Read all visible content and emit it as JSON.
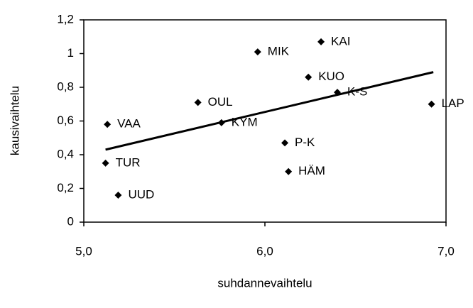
{
  "chart_data": {
    "type": "scatter",
    "x_label": "suhdannevaihtelu",
    "y_label": "kausivaihtelu",
    "series": [
      {
        "color": "#000000",
        "labels": [
          "VAA",
          "TUR",
          "UUD",
          "OUL",
          "KYM",
          "MIK",
          "KAI",
          "KUO",
          "K-S",
          "LAP",
          "P-K",
          "HÄM"
        ],
        "x": [
          5.13,
          5.12,
          5.19,
          5.63,
          5.76,
          5.96,
          6.31,
          6.24,
          6.4,
          6.92,
          6.11,
          6.13
        ],
        "values": [
          0.58,
          0.35,
          0.16,
          0.71,
          0.59,
          1.01,
          1.07,
          0.86,
          0.77,
          0.7,
          0.47,
          0.3
        ]
      }
    ],
    "trendline": {
      "color": "#000000",
      "x": [
        5.12,
        6.93
      ],
      "values": [
        0.43,
        0.89
      ]
    },
    "xlim": [
      5.0,
      7.0
    ],
    "xticks": [
      {
        "value": 5.0,
        "label": "5,0"
      },
      {
        "value": 6.0,
        "label": "6,0"
      },
      {
        "value": 7.0,
        "label": "7,0"
      }
    ],
    "ylim": [
      0,
      1.2
    ],
    "yticks": [
      0,
      {
        "value": 0.2,
        "label": "0,2"
      },
      {
        "value": 0.4,
        "label": "0,4"
      },
      {
        "value": 0.6,
        "label": "0,6"
      },
      {
        "value": 0.8,
        "label": "0,8"
      },
      1,
      {
        "value": 1.2,
        "label": "1,2"
      }
    ],
    "grid": false
  }
}
